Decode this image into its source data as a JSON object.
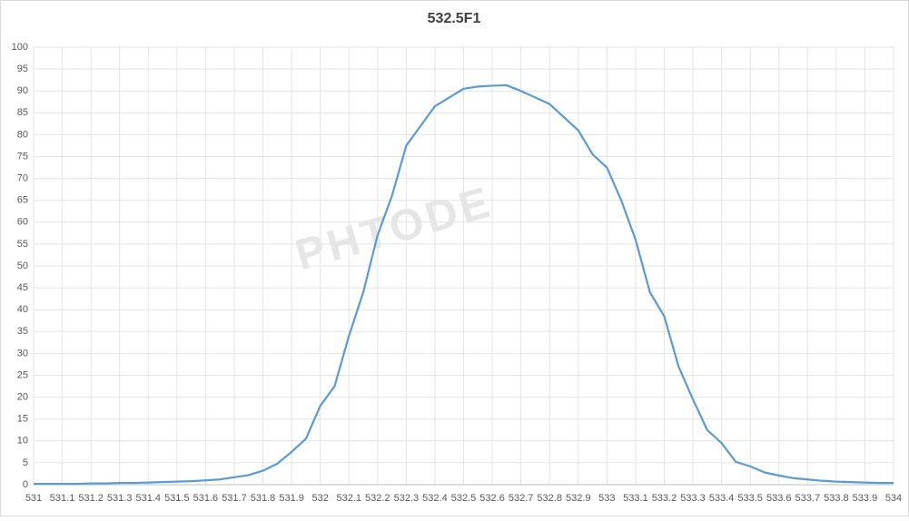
{
  "chart_data": {
    "type": "line",
    "title": "532.5F1",
    "watermark": "PHTODE",
    "x": [
      531,
      531.05,
      531.1,
      531.15,
      531.2,
      531.25,
      531.3,
      531.35,
      531.4,
      531.45,
      531.5,
      531.55,
      531.6,
      531.65,
      531.7,
      531.75,
      531.8,
      531.85,
      531.9,
      531.95,
      532,
      532.05,
      532.1,
      532.15,
      532.2,
      532.25,
      532.3,
      532.35,
      532.4,
      532.45,
      532.5,
      532.55,
      532.6,
      532.65,
      532.7,
      532.75,
      532.8,
      532.85,
      532.9,
      532.95,
      533,
      533.05,
      533.1,
      533.15,
      533.2,
      533.25,
      533.3,
      533.35,
      533.4,
      533.45,
      533.5,
      533.55,
      533.6,
      533.65,
      533.7,
      533.75,
      533.8,
      533.85,
      533.9,
      533.95,
      534
    ],
    "values": [
      0.2,
      0.2,
      0.2,
      0.2,
      0.3,
      0.3,
      0.4,
      0.4,
      0.5,
      0.6,
      0.7,
      0.8,
      1.0,
      1.2,
      1.7,
      2.2,
      3.2,
      4.8,
      7.5,
      10.5,
      18,
      22.5,
      34,
      44,
      57,
      66,
      77.5,
      82,
      86.5,
      88.5,
      90.5,
      91,
      91.2,
      91.3,
      90,
      88.5,
      87,
      84,
      81,
      75.5,
      72.5,
      65,
      56,
      44,
      38.5,
      27,
      19.5,
      12.5,
      9.5,
      5.2,
      4.2,
      2.8,
      2.1,
      1.5,
      1.2,
      0.9,
      0.7,
      0.6,
      0.5,
      0.4,
      0.4
    ],
    "color": "#5b9bd5",
    "xlim": [
      531,
      534
    ],
    "xticks": [
      531,
      531.1,
      531.2,
      531.3,
      531.4,
      531.5,
      531.6,
      531.7,
      531.8,
      531.9,
      532,
      532.1,
      532.2,
      532.3,
      532.4,
      532.5,
      532.6,
      532.7,
      532.8,
      532.9,
      533,
      533.1,
      533.2,
      533.3,
      533.4,
      533.5,
      533.6,
      533.7,
      533.8,
      533.9,
      534
    ],
    "ylim": [
      0,
      100
    ],
    "yticks": [
      0,
      5,
      10,
      15,
      20,
      25,
      30,
      35,
      40,
      45,
      50,
      55,
      60,
      65,
      70,
      75,
      80,
      85,
      90,
      95,
      100
    ],
    "grid": true
  }
}
